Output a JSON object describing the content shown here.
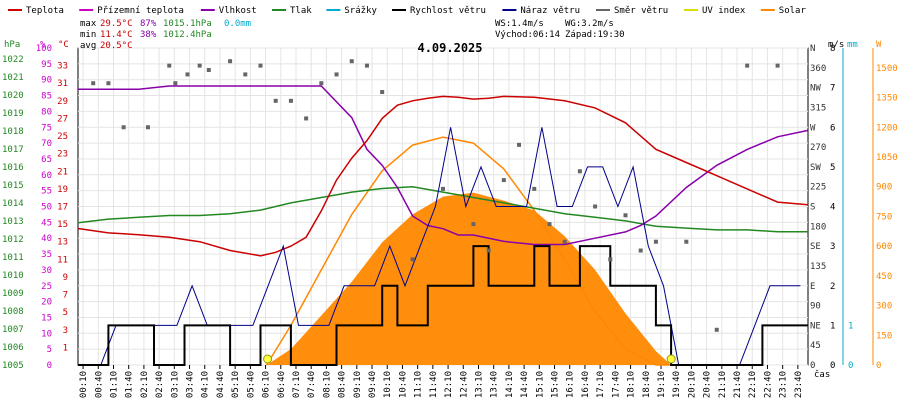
{
  "chart_data": {
    "type": "line",
    "title": "4.09.2025",
    "xlabel": "čas",
    "legend": [
      {
        "key": "teplota",
        "label": "Teplota",
        "color": "#cc0000"
      },
      {
        "key": "prizemni",
        "label": "Přízemní teplota",
        "color": "#cc00cc"
      },
      {
        "key": "vlhkost",
        "label": "Vlhkost",
        "color": "#8800aa"
      },
      {
        "key": "tlak",
        "label": "Tlak",
        "color": "#228822"
      },
      {
        "key": "srazky",
        "label": "Srážky",
        "color": "#00aacc"
      },
      {
        "key": "rychlost",
        "label": "Rychlost větru",
        "color": "#000000"
      },
      {
        "key": "naraz",
        "label": "Náraz větru",
        "color": "#000088"
      },
      {
        "key": "smer",
        "label": "Směr větru",
        "color": "#666666"
      },
      {
        "key": "uv",
        "label": "UV index",
        "color": "#dddd00"
      },
      {
        "key": "solar",
        "label": "Solar",
        "color": "#ff8800"
      }
    ],
    "stats": {
      "max_label": "max",
      "max_temp": "29.5°C",
      "max_hum": "87%",
      "max_press": "1015.1hPa",
      "max_rain": "0.0mm",
      "min_label": "min",
      "min_temp": "11.4°C",
      "min_hum": "38%",
      "min_press": "1012.4hPa",
      "avg_label": "avg",
      "avg_temp": "20.5°C"
    },
    "info": {
      "ws": "WS:1.4m/s",
      "wg": "WG:3.2m/s",
      "sunrise": "Východ:06:14",
      "sunset": "Západ:19:30"
    },
    "axes": {
      "hpa": {
        "unit": "hPa",
        "ticks": [
          1005,
          1006,
          1007,
          1008,
          1009,
          1010,
          1011,
          1012,
          1013,
          1014,
          1015,
          1016,
          1017,
          1018,
          1019,
          1020,
          1021,
          1022
        ],
        "range": [
          1005,
          1022.6
        ],
        "color": "#228822"
      },
      "pct": {
        "unit": "%",
        "ticks": [
          0,
          5,
          10,
          15,
          20,
          25,
          30,
          35,
          40,
          45,
          50,
          55,
          60,
          65,
          70,
          75,
          80,
          85,
          90,
          95,
          100
        ],
        "range": [
          0,
          100
        ],
        "color": "#cc00cc"
      },
      "c": {
        "unit": "°C",
        "ticks": [
          1,
          3,
          5,
          7,
          9,
          11,
          13,
          15,
          17,
          19,
          21,
          23,
          25,
          27,
          29,
          31,
          33
        ],
        "range": [
          -1,
          35
        ],
        "color": "#cc0000"
      },
      "dir": {
        "ticks": [
          "0",
          "45",
          "NE",
          "90",
          "E",
          "135",
          "SE",
          "180",
          "S",
          "225",
          "SW",
          "270",
          "W",
          "315",
          "NW",
          "360",
          "N"
        ],
        "range": [
          0,
          360
        ],
        "color": "#333333"
      },
      "ms": {
        "unit": "m/s",
        "ticks": [
          0,
          1,
          2,
          3,
          4,
          5,
          6,
          7,
          8
        ],
        "range": [
          0,
          8
        ],
        "color": "#000000"
      },
      "mm": {
        "unit": "mm",
        "ticks": [
          0,
          1
        ],
        "range": [
          0,
          8
        ],
        "color": "#00aacc"
      },
      "w": {
        "unit": "W",
        "ticks": [
          0,
          150,
          300,
          450,
          600,
          750,
          900,
          1050,
          1200,
          1350,
          1500
        ],
        "range": [
          0,
          1600
        ],
        "color": "#ff8800"
      }
    },
    "x_ticks": [
      "00:10",
      "00:40",
      "01:10",
      "01:40",
      "02:10",
      "02:40",
      "03:10",
      "03:40",
      "04:10",
      "04:40",
      "05:10",
      "05:40",
      "06:10",
      "06:40",
      "07:10",
      "07:40",
      "08:10",
      "08:40",
      "09:10",
      "09:40",
      "10:10",
      "10:40",
      "11:10",
      "11:40",
      "12:10",
      "12:40",
      "13:10",
      "13:40",
      "14:10",
      "14:40",
      "15:10",
      "15:40",
      "16:10",
      "16:40",
      "17:10",
      "17:40",
      "18:10",
      "18:40",
      "19:10",
      "19:40",
      "20:10",
      "20:40",
      "21:10",
      "21:40",
      "22:10",
      "22:40",
      "23:10",
      "23:40"
    ],
    "series": {
      "teplota_h": [
        0,
        1,
        2,
        3,
        4,
        5,
        6,
        6.5,
        7,
        7.5,
        8,
        8.5,
        9,
        9.5,
        10,
        10.5,
        11,
        11.5,
        12,
        12.5,
        13,
        13.5,
        14,
        15,
        16,
        17,
        18,
        18.5,
        19,
        20,
        21,
        22,
        23,
        24
      ],
      "teplota": [
        14.5,
        14.0,
        13.8,
        13.5,
        13.0,
        12.0,
        11.4,
        11.8,
        12.5,
        13.5,
        16.5,
        20.0,
        22.5,
        24.5,
        27.0,
        28.5,
        29.0,
        29.3,
        29.5,
        29.4,
        29.2,
        29.3,
        29.5,
        29.4,
        29.0,
        28.2,
        26.5,
        25.0,
        23.5,
        22.0,
        20.5,
        19.0,
        17.5,
        17.2
      ],
      "vlhkost_h": [
        0,
        1,
        2,
        3,
        4,
        5,
        6,
        7,
        8,
        9,
        9.5,
        10,
        10.5,
        11,
        11.5,
        12,
        12.5,
        13,
        14,
        15,
        16,
        17,
        18,
        18.5,
        19,
        20,
        21,
        22,
        23,
        24
      ],
      "vlhkost": [
        87,
        87,
        87,
        88,
        88,
        88,
        88,
        88,
        88,
        78,
        68,
        63,
        56,
        47,
        44,
        43,
        41,
        41,
        39,
        38,
        38,
        40,
        42,
        44,
        47,
        56,
        63,
        68,
        72,
        74
      ],
      "tlak_h": [
        0,
        1,
        2,
        3,
        4,
        5,
        6,
        7,
        8,
        9,
        10,
        11,
        12,
        13,
        14,
        15,
        16,
        17,
        18,
        19,
        20,
        21,
        22,
        23,
        24
      ],
      "tlak": [
        1012.9,
        1013.1,
        1013.2,
        1013.3,
        1013.3,
        1013.4,
        1013.6,
        1014.0,
        1014.3,
        1014.6,
        1014.8,
        1014.9,
        1014.6,
        1014.3,
        1014.0,
        1013.7,
        1013.4,
        1013.2,
        1013.0,
        1012.7,
        1012.6,
        1012.5,
        1012.5,
        1012.4,
        1012.4
      ],
      "rychlost": [
        0,
        0,
        1,
        1,
        1,
        0,
        0,
        1,
        1,
        1,
        0,
        0,
        1,
        1,
        0,
        0,
        0,
        1,
        1,
        1,
        2,
        1,
        1,
        2,
        2,
        2,
        3,
        2,
        2,
        2,
        3,
        2,
        2,
        3,
        3,
        2,
        2,
        2,
        1,
        0,
        0,
        0,
        0,
        0,
        0,
        1,
        1,
        1
      ],
      "naraz": [
        0,
        0,
        1,
        1,
        1,
        1,
        1,
        2,
        1,
        1,
        1,
        1,
        2,
        3,
        1,
        1,
        1,
        2,
        2,
        2,
        3,
        2,
        3,
        4,
        6,
        4,
        5,
        4,
        4,
        4,
        6,
        4,
        4,
        5,
        5,
        4,
        5,
        3,
        2,
        0,
        0,
        0,
        0,
        0,
        1,
        2,
        2,
        2
      ],
      "solar_h": [
        6.2,
        7,
        8,
        9,
        10,
        11,
        12,
        13,
        14,
        15,
        16,
        17,
        18,
        19,
        19.5
      ],
      "solar": [
        0,
        80,
        250,
        420,
        620,
        760,
        850,
        870,
        830,
        780,
        650,
        480,
        260,
        70,
        0
      ],
      "solar_theory": [
        0,
        200,
        480,
        760,
        980,
        1110,
        1150,
        1120,
        990,
        780,
        530,
        270,
        80,
        0,
        0
      ],
      "smer_h": [
        0.5,
        1,
        1.5,
        2.3,
        3,
        3.2,
        3.6,
        4,
        4.3,
        5,
        5.5,
        6,
        6.5,
        7,
        7.5,
        8,
        8.5,
        9,
        9.5,
        10,
        11,
        12,
        13,
        13.5,
        14,
        14.5,
        15,
        15.5,
        16,
        16.5,
        17,
        17.5,
        18,
        18.5,
        19,
        20,
        21,
        22,
        23
      ],
      "smer": [
        320,
        320,
        270,
        270,
        340,
        320,
        330,
        340,
        335,
        345,
        330,
        340,
        300,
        300,
        280,
        320,
        330,
        345,
        340,
        310,
        120,
        200,
        160,
        130,
        210,
        250,
        200,
        160,
        140,
        220,
        180,
        120,
        170,
        130,
        140,
        140,
        40,
        340,
        340
      ]
    },
    "uv_markers": [
      "06:14",
      "19:30"
    ]
  }
}
